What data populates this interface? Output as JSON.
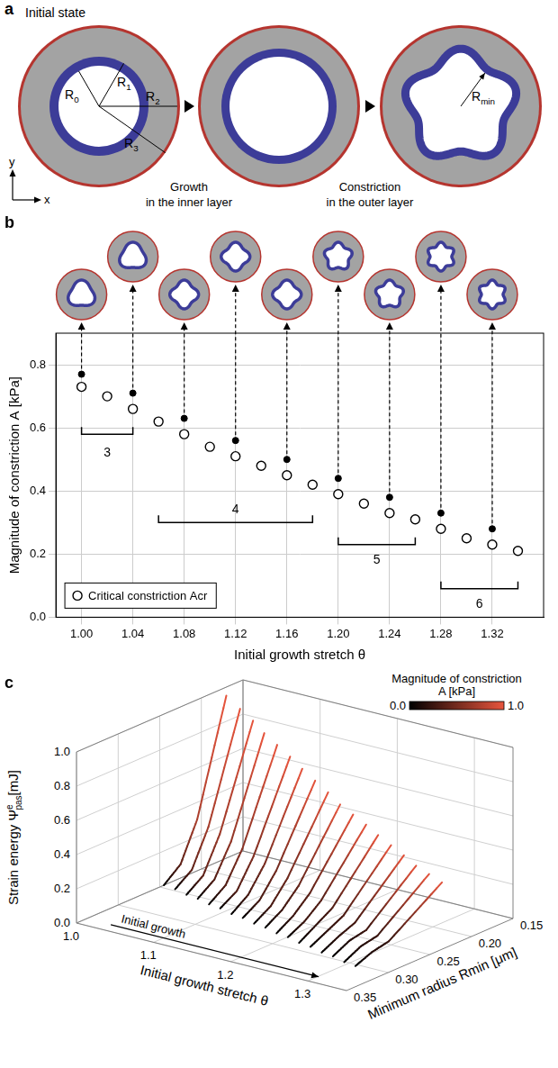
{
  "panel_letters": [
    "a",
    "b",
    "c"
  ],
  "diagram": {
    "type": "diagram",
    "stages": [
      "Initial state",
      "Growth in the inner layer",
      "Constriction in the outer layer"
    ],
    "radii": [
      "R0",
      "R1",
      "R2",
      "R3"
    ],
    "min_radius": "Rmin",
    "axes": [
      "x",
      "y"
    ],
    "lobes": 5,
    "colors": {
      "outer": "#a3a3a3",
      "inner": "#3c3c98",
      "border": "#b5352f"
    }
  },
  "chart_data": {
    "type": "scatter",
    "x_label": "Initial growth stretch θ",
    "y_label": "Magnitude of constriction A [kPa]",
    "xlim": [
      0.98,
      1.36
    ],
    "xticks": [
      {
        "value": 1,
        "label": "1.00"
      },
      1.04,
      1.08,
      1.12,
      1.16,
      {
        "value": 1.2,
        "label": "1.20"
      },
      1.24,
      1.28,
      1.32
    ],
    "ylim": [
      0,
      0.9
    ],
    "yticks": [
      {
        "value": 0,
        "label": "0.0"
      },
      0.2,
      0.4,
      0.6,
      0.8
    ],
    "grid": true,
    "legend": "lower left",
    "series": [
      {
        "name": "Critical constriction Acr",
        "marker": "open circle",
        "color": "#000000",
        "x": [
          1.0,
          1.02,
          1.04,
          1.06,
          1.08,
          1.1,
          1.12,
          1.14,
          1.16,
          1.18,
          1.2,
          1.22,
          1.24,
          1.26,
          1.28,
          1.3,
          1.32,
          1.34
        ],
        "values": [
          0.73,
          0.7,
          0.66,
          0.62,
          0.58,
          0.54,
          0.51,
          0.48,
          0.45,
          0.42,
          0.39,
          0.36,
          0.33,
          0.31,
          0.28,
          0.25,
          0.23,
          0.21
        ]
      },
      {
        "marker": "filled circle",
        "color": "#000000",
        "x": [
          1.0,
          1.04,
          1.08,
          1.12,
          1.16,
          1.2,
          1.24,
          1.28,
          1.32
        ],
        "values": [
          0.77,
          0.71,
          0.63,
          0.56,
          0.5,
          0.44,
          0.38,
          0.33,
          0.28
        ]
      }
    ],
    "brackets": [
      {
        "label": "3",
        "from": 1.0,
        "to": 1.04,
        "y": 0.58,
        "label_y": 0.52
      },
      {
        "label": "4",
        "from": 1.06,
        "to": 1.18,
        "y": 0.3,
        "label_y": 0.34
      },
      {
        "label": "5",
        "from": 1.2,
        "to": 1.26,
        "y": 0.23,
        "label_y": 0.18
      },
      {
        "label": "6",
        "from": 1.28,
        "to": 1.34,
        "y": 0.09,
        "label_y": 0.04
      }
    ],
    "shapes": [
      {
        "x": 1.0,
        "lobes": 3
      },
      {
        "x": 1.04,
        "lobes": 3
      },
      {
        "x": 1.08,
        "lobes": 4
      },
      {
        "x": 1.12,
        "lobes": 4
      },
      {
        "x": 1.16,
        "lobes": 4
      },
      {
        "x": 1.2,
        "lobes": 5
      },
      {
        "x": 1.24,
        "lobes": 5
      },
      {
        "x": 1.28,
        "lobes": 6
      },
      {
        "x": 1.32,
        "lobes": 6
      }
    ]
  },
  "chart_3d": {
    "type": "line3d",
    "x_label": "Initial growth stretch θ",
    "y_label": "Minimum radius Rmin [μm]",
    "z_label": {
      "text": "Strain energy Ψ",
      "sup": "e",
      "sub": "pas",
      "unit": "[mJ]"
    },
    "xlim": [
      1.0,
      1.35
    ],
    "xticks": [
      {
        "value": 1,
        "label": "1.0"
      },
      1.1,
      1.2,
      1.3
    ],
    "ylim": [
      0.35,
      0.15
    ],
    "yticks": [
      0.15,
      {
        "value": 0.2,
        "label": "0.20"
      },
      0.25,
      {
        "value": 0.3,
        "label": "0.30"
      },
      0.35
    ],
    "zlim": [
      0,
      1
    ],
    "zticks": [
      {
        "value": 0,
        "label": "0.0"
      },
      0.2,
      0.4,
      0.6,
      0.8,
      {
        "value": 1,
        "label": "1.0"
      }
    ],
    "grid": true,
    "annotation": "Initial growth",
    "colorbar": {
      "title": "Magnitude of constriction A [kPa]",
      "range": [
        0,
        1
      ],
      "ticks": [
        {
          "value": 0,
          "label": "0.0"
        },
        {
          "value": 1,
          "label": "1.0"
        }
      ],
      "colors": [
        "#000000",
        "#e8553d"
      ]
    },
    "series": [
      {
        "theta": 1.0,
        "points": [
          [
            0.245,
            0.0,
            0.0
          ],
          [
            0.225,
            0.08,
            0.4
          ],
          [
            0.205,
            0.3,
            0.73
          ],
          [
            0.17,
            0.95,
            1.0
          ]
        ]
      },
      {
        "theta": 1.02,
        "points": [
          [
            0.25,
            0.01,
            0.0
          ],
          [
            0.23,
            0.08,
            0.4
          ],
          [
            0.21,
            0.29,
            0.7
          ],
          [
            0.172,
            0.9,
            1.0
          ]
        ]
      },
      {
        "theta": 1.04,
        "points": [
          [
            0.255,
            0.01,
            0.0
          ],
          [
            0.235,
            0.08,
            0.4
          ],
          [
            0.215,
            0.28,
            0.66
          ],
          [
            0.175,
            0.86,
            1.0
          ]
        ]
      },
      {
        "theta": 1.06,
        "points": [
          [
            0.26,
            0.02,
            0.0
          ],
          [
            0.24,
            0.09,
            0.35
          ],
          [
            0.22,
            0.27,
            0.62
          ],
          [
            0.18,
            0.82,
            1.0
          ]
        ]
      },
      {
        "theta": 1.08,
        "points": [
          [
            0.265,
            0.02,
            0.0
          ],
          [
            0.245,
            0.09,
            0.35
          ],
          [
            0.225,
            0.26,
            0.58
          ],
          [
            0.183,
            0.78,
            1.0
          ]
        ]
      },
      {
        "theta": 1.1,
        "points": [
          [
            0.27,
            0.03,
            0.0
          ],
          [
            0.25,
            0.09,
            0.35
          ],
          [
            0.23,
            0.25,
            0.54
          ],
          [
            0.186,
            0.74,
            1.0
          ]
        ]
      },
      {
        "theta": 1.12,
        "points": [
          [
            0.275,
            0.03,
            0.0
          ],
          [
            0.255,
            0.1,
            0.3
          ],
          [
            0.235,
            0.24,
            0.51
          ],
          [
            0.19,
            0.7,
            1.0
          ]
        ]
      },
      {
        "theta": 1.14,
        "points": [
          [
            0.28,
            0.04,
            0.0
          ],
          [
            0.26,
            0.1,
            0.3
          ],
          [
            0.24,
            0.23,
            0.48
          ],
          [
            0.193,
            0.66,
            1.0
          ]
        ]
      },
      {
        "theta": 1.16,
        "points": [
          [
            0.285,
            0.04,
            0.0
          ],
          [
            0.265,
            0.1,
            0.3
          ],
          [
            0.245,
            0.22,
            0.45
          ],
          [
            0.196,
            0.62,
            1.0
          ]
        ]
      },
      {
        "theta": 1.18,
        "points": [
          [
            0.29,
            0.05,
            0.0
          ],
          [
            0.27,
            0.11,
            0.25
          ],
          [
            0.25,
            0.21,
            0.42
          ],
          [
            0.2,
            0.58,
            1.0
          ]
        ]
      },
      {
        "theta": 1.2,
        "points": [
          [
            0.295,
            0.05,
            0.0
          ],
          [
            0.275,
            0.11,
            0.25
          ],
          [
            0.255,
            0.2,
            0.39
          ],
          [
            0.203,
            0.55,
            1.0
          ]
        ]
      },
      {
        "theta": 1.22,
        "points": [
          [
            0.3,
            0.06,
            0.0
          ],
          [
            0.28,
            0.11,
            0.25
          ],
          [
            0.26,
            0.19,
            0.36
          ],
          [
            0.206,
            0.52,
            1.0
          ]
        ]
      },
      {
        "theta": 1.24,
        "points": [
          [
            0.305,
            0.06,
            0.0
          ],
          [
            0.285,
            0.12,
            0.2
          ],
          [
            0.265,
            0.18,
            0.33
          ],
          [
            0.21,
            0.49,
            1.0
          ]
        ]
      },
      {
        "theta": 1.26,
        "points": [
          [
            0.31,
            0.07,
            0.0
          ],
          [
            0.29,
            0.12,
            0.2
          ],
          [
            0.27,
            0.17,
            0.31
          ],
          [
            0.213,
            0.46,
            1.0
          ]
        ]
      },
      {
        "theta": 1.28,
        "points": [
          [
            0.315,
            0.07,
            0.0
          ],
          [
            0.295,
            0.12,
            0.2
          ],
          [
            0.275,
            0.16,
            0.28
          ],
          [
            0.216,
            0.43,
            1.0
          ]
        ]
      },
      {
        "theta": 1.3,
        "points": [
          [
            0.32,
            0.08,
            0.0
          ],
          [
            0.3,
            0.13,
            0.15
          ],
          [
            0.28,
            0.15,
            0.25
          ],
          [
            0.22,
            0.4,
            1.0
          ]
        ]
      },
      {
        "theta": 1.32,
        "points": [
          [
            0.325,
            0.08,
            0.0
          ],
          [
            0.305,
            0.13,
            0.15
          ],
          [
            0.285,
            0.15,
            0.23
          ],
          [
            0.223,
            0.38,
            1.0
          ]
        ]
      },
      {
        "theta": 1.34,
        "points": [
          [
            0.33,
            0.09,
            0.0
          ],
          [
            0.31,
            0.13,
            0.15
          ],
          [
            0.29,
            0.15,
            0.21
          ],
          [
            0.226,
            0.36,
            1.0
          ]
        ]
      }
    ]
  }
}
